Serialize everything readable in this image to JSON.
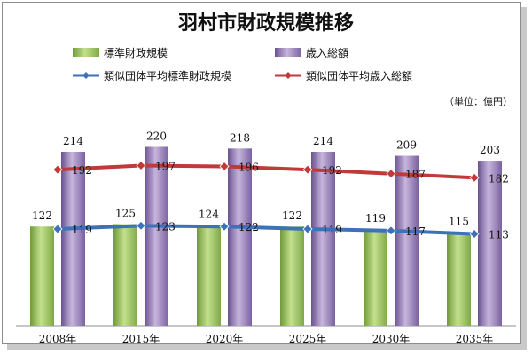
{
  "chart_data": {
    "type": "bar",
    "title": "羽村市財政規模推移",
    "unit": "（単位：億円）",
    "categories": [
      "2008年",
      "2015年",
      "2020年",
      "2025年",
      "2030年",
      "2035年"
    ],
    "series": [
      {
        "name": "標準財政規模",
        "kind": "bar",
        "color": "#9cc268",
        "values": [
          122,
          125,
          124,
          122,
          119,
          115
        ]
      },
      {
        "name": "歳入総額",
        "kind": "bar",
        "color": "#8f74ae",
        "values": [
          214,
          220,
          218,
          214,
          209,
          203
        ]
      },
      {
        "name": "類似団体平均標準財政規模",
        "kind": "line",
        "color": "#3d72b8",
        "values": [
          119,
          123,
          122,
          119,
          117,
          113
        ]
      },
      {
        "name": "類似団体平均歳入総額",
        "kind": "line",
        "color": "#c03a3a",
        "values": [
          192,
          197,
          196,
          192,
          187,
          182
        ]
      }
    ],
    "ylim": [
      0,
      260
    ],
    "grid": false,
    "legend_position": "top"
  }
}
